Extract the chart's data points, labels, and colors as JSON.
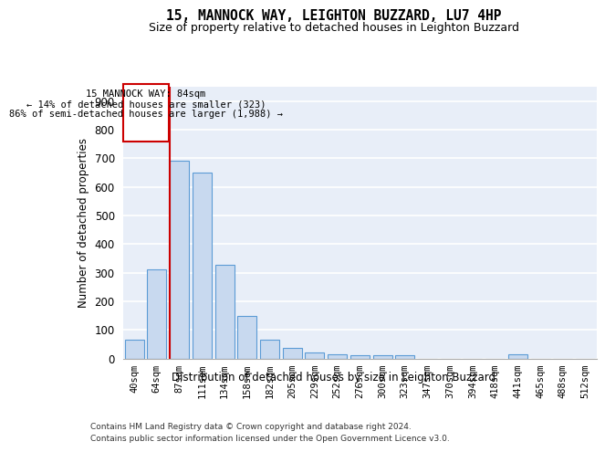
{
  "title1": "15, MANNOCK WAY, LEIGHTON BUZZARD, LU7 4HP",
  "title2": "Size of property relative to detached houses in Leighton Buzzard",
  "xlabel": "Distribution of detached houses by size in Leighton Buzzard",
  "ylabel": "Number of detached properties",
  "footnote1": "Contains HM Land Registry data © Crown copyright and database right 2024.",
  "footnote2": "Contains public sector information licensed under the Open Government Licence v3.0.",
  "bar_labels": [
    "40sqm",
    "64sqm",
    "87sqm",
    "111sqm",
    "134sqm",
    "158sqm",
    "182sqm",
    "205sqm",
    "229sqm",
    "252sqm",
    "276sqm",
    "300sqm",
    "323sqm",
    "347sqm",
    "370sqm",
    "394sqm",
    "418sqm",
    "441sqm",
    "465sqm",
    "488sqm",
    "512sqm"
  ],
  "bar_values": [
    65,
    310,
    690,
    650,
    328,
    148,
    65,
    37,
    22,
    13,
    11,
    11,
    10,
    0,
    0,
    0,
    0,
    13,
    0,
    0,
    0
  ],
  "bar_color": "#c8d9ef",
  "bar_edge_color": "#5b9bd5",
  "ann_header": "15 MANNOCK WAY: 84sqm",
  "ann_line1": "← 14% of detached houses are smaller (323)",
  "ann_line2": "86% of semi-detached houses are larger (1,988) →",
  "vline_color": "#cc0000",
  "box_edge_color": "#cc0000",
  "ylim": [
    0,
    950
  ],
  "yticks": [
    0,
    100,
    200,
    300,
    400,
    500,
    600,
    700,
    800,
    900
  ],
  "bg_color": "#e8eef8",
  "grid_color": "#ffffff",
  "vline_x_index": 2,
  "vline_x_offset": -0.43
}
